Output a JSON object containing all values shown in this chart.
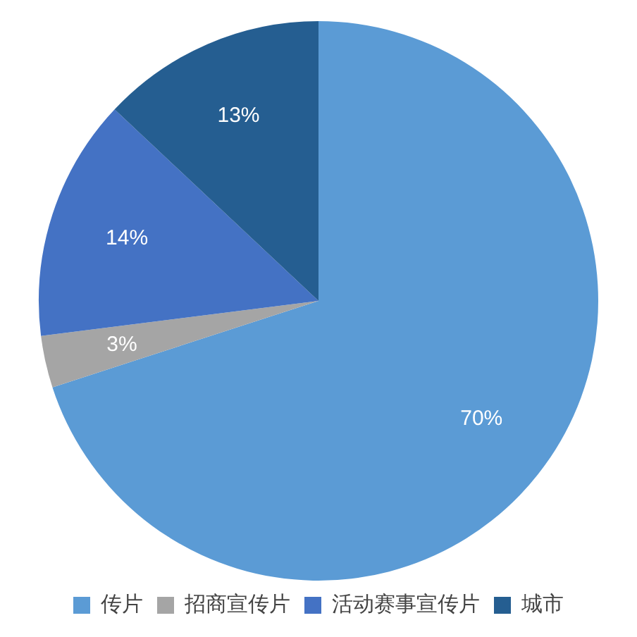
{
  "chart_data": {
    "type": "pie",
    "categories": [
      "传片",
      "招商宣传片",
      "活动赛事宣传片",
      "城市"
    ],
    "values": [
      70,
      3,
      14,
      13
    ],
    "colors": [
      "#5b9bd5",
      "#a5a5a5",
      "#4472c4",
      "#255e91"
    ],
    "value_labels": [
      "70%",
      "3%",
      "14%",
      "13%"
    ],
    "legend": "bottom"
  }
}
